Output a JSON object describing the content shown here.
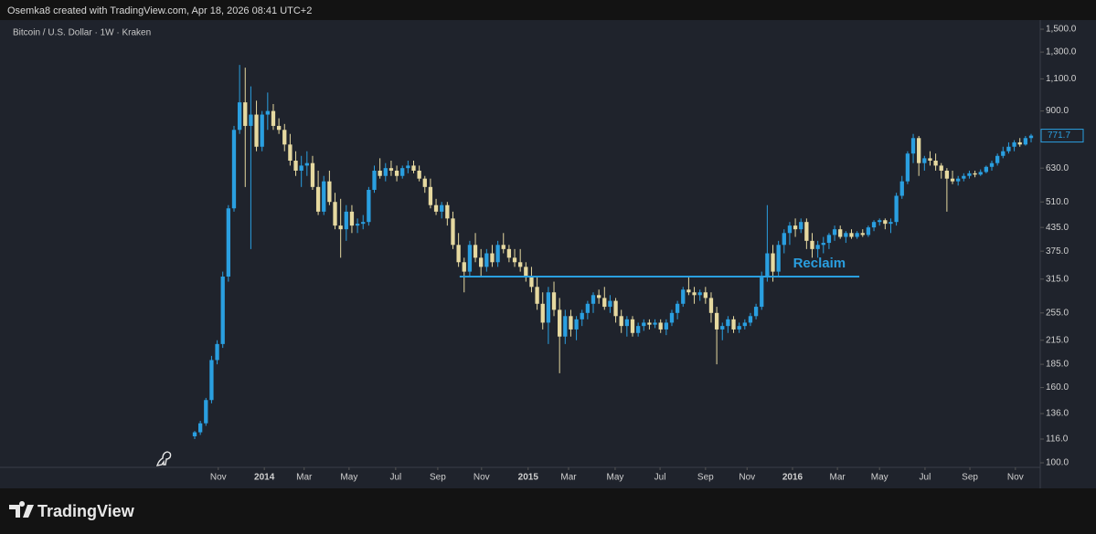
{
  "header": {
    "credit": "Osemka8 created with TradingView.com, Apr 18, 2026 08:41 UTC+2"
  },
  "brand": "TradingView",
  "chart_data": {
    "type": "candlestick",
    "title": "Bitcoin / U.S. Dollar · 1W · Kraken",
    "log_scale": true,
    "up_color": "#2a9fe0",
    "down_color": "#e6d9a0",
    "ylim": [
      97.2,
      1588
    ],
    "yticks": [
      {
        "value": 100,
        "label": "100.0"
      },
      {
        "value": 116,
        "label": "116.0"
      },
      {
        "value": 136,
        "label": "136.0"
      },
      {
        "value": 160,
        "label": "160.0"
      },
      {
        "value": 185,
        "label": "185.0"
      },
      {
        "value": 215,
        "label": "215.0"
      },
      {
        "value": 255,
        "label": "255.0"
      },
      {
        "value": 315,
        "label": "315.0"
      },
      {
        "value": 375,
        "label": "375.0"
      },
      {
        "value": 435,
        "label": "435.0"
      },
      {
        "value": 510,
        "label": "510.0"
      },
      {
        "value": 630,
        "label": "630.0"
      },
      {
        "value": 900,
        "label": "900.0"
      },
      {
        "value": 1100,
        "label": "1,100.0"
      },
      {
        "value": 1300,
        "label": "1,300.0"
      },
      {
        "value": 1500,
        "label": "1,500.0"
      }
    ],
    "xlim": [
      -0.5,
      149.5
    ],
    "xticks": [
      {
        "value": 4.2,
        "label": "Nov"
      },
      {
        "value": 12.4,
        "label": "2014"
      },
      {
        "value": 19.5,
        "label": "Mar"
      },
      {
        "value": 27.5,
        "label": "May"
      },
      {
        "value": 35.8,
        "label": "Jul"
      },
      {
        "value": 43.3,
        "label": "Sep"
      },
      {
        "value": 51.1,
        "label": "Nov"
      },
      {
        "value": 59.4,
        "label": "2015"
      },
      {
        "value": 66.6,
        "label": "Mar"
      },
      {
        "value": 74.9,
        "label": "May"
      },
      {
        "value": 82.9,
        "label": "Jul"
      },
      {
        "value": 91,
        "label": "Sep"
      },
      {
        "value": 98.4,
        "label": "Nov"
      },
      {
        "value": 106.5,
        "label": "2016"
      },
      {
        "value": 114.5,
        "label": "Mar"
      },
      {
        "value": 122,
        "label": "May"
      },
      {
        "value": 130.1,
        "label": "Jul"
      },
      {
        "value": 138.1,
        "label": "Sep"
      },
      {
        "value": 146.2,
        "label": "Nov"
      }
    ],
    "price_tag": 771.7,
    "level": {
      "value": 320,
      "start": 47.2,
      "end": 118.4,
      "color": "#2a9fe0",
      "label": "Reclaim"
    },
    "candles": [
      [
        118,
        122,
        116,
        121
      ],
      [
        121,
        130,
        119,
        128
      ],
      [
        128,
        150,
        126,
        148
      ],
      [
        148,
        195,
        145,
        190
      ],
      [
        190,
        215,
        185,
        210
      ],
      [
        210,
        330,
        205,
        320
      ],
      [
        320,
        500,
        310,
        490
      ],
      [
        490,
        820,
        480,
        800
      ],
      [
        800,
        1200,
        780,
        950
      ],
      [
        950,
        1180,
        560,
        820
      ],
      [
        820,
        1050,
        380,
        880
      ],
      [
        880,
        960,
        700,
        720
      ],
      [
        720,
        900,
        700,
        880
      ],
      [
        880,
        1010,
        800,
        900
      ],
      [
        900,
        940,
        800,
        820
      ],
      [
        820,
        860,
        780,
        800
      ],
      [
        800,
        830,
        700,
        730
      ],
      [
        730,
        780,
        640,
        660
      ],
      [
        660,
        700,
        600,
        620
      ],
      [
        620,
        680,
        560,
        640
      ],
      [
        640,
        700,
        600,
        650
      ],
      [
        650,
        680,
        550,
        560
      ],
      [
        560,
        620,
        470,
        480
      ],
      [
        480,
        600,
        470,
        580
      ],
      [
        580,
        620,
        500,
        510
      ],
      [
        510,
        540,
        430,
        440
      ],
      [
        440,
        520,
        360,
        430
      ],
      [
        430,
        500,
        400,
        480
      ],
      [
        480,
        500,
        420,
        440
      ],
      [
        440,
        460,
        420,
        445
      ],
      [
        445,
        470,
        430,
        450
      ],
      [
        450,
        560,
        440,
        550
      ],
      [
        550,
        640,
        540,
        620
      ],
      [
        620,
        670,
        590,
        600
      ],
      [
        600,
        650,
        580,
        630
      ],
      [
        630,
        660,
        600,
        620
      ],
      [
        620,
        640,
        580,
        600
      ],
      [
        600,
        640,
        590,
        630
      ],
      [
        630,
        660,
        610,
        640
      ],
      [
        640,
        660,
        610,
        620
      ],
      [
        620,
        640,
        580,
        590
      ],
      [
        590,
        600,
        540,
        560
      ],
      [
        560,
        590,
        490,
        500
      ],
      [
        500,
        520,
        470,
        480
      ],
      [
        480,
        510,
        460,
        500
      ],
      [
        500,
        510,
        440,
        460
      ],
      [
        460,
        480,
        380,
        390
      ],
      [
        390,
        420,
        340,
        350
      ],
      [
        350,
        360,
        290,
        330
      ],
      [
        330,
        400,
        320,
        390
      ],
      [
        390,
        420,
        350,
        360
      ],
      [
        360,
        380,
        320,
        340
      ],
      [
        340,
        380,
        330,
        370
      ],
      [
        370,
        390,
        340,
        350
      ],
      [
        350,
        400,
        340,
        390
      ],
      [
        390,
        420,
        370,
        380
      ],
      [
        380,
        390,
        350,
        360
      ],
      [
        360,
        380,
        340,
        350
      ],
      [
        350,
        380,
        330,
        340
      ],
      [
        340,
        350,
        310,
        320
      ],
      [
        320,
        340,
        290,
        300
      ],
      [
        300,
        320,
        260,
        270
      ],
      [
        270,
        290,
        230,
        240
      ],
      [
        240,
        300,
        210,
        290
      ],
      [
        290,
        310,
        250,
        260
      ],
      [
        260,
        280,
        175,
        220
      ],
      [
        220,
        260,
        210,
        250
      ],
      [
        250,
        260,
        220,
        230
      ],
      [
        230,
        250,
        215,
        245
      ],
      [
        245,
        260,
        235,
        255
      ],
      [
        255,
        275,
        245,
        270
      ],
      [
        270,
        290,
        255,
        285
      ],
      [
        285,
        295,
        270,
        280
      ],
      [
        280,
        300,
        260,
        265
      ],
      [
        265,
        285,
        255,
        275
      ],
      [
        275,
        280,
        240,
        250
      ],
      [
        250,
        260,
        225,
        235
      ],
      [
        235,
        250,
        220,
        245
      ],
      [
        245,
        250,
        220,
        225
      ],
      [
        225,
        240,
        220,
        235
      ],
      [
        235,
        245,
        228,
        240
      ],
      [
        240,
        245,
        230,
        237
      ],
      [
        237,
        245,
        232,
        240
      ],
      [
        240,
        245,
        225,
        230
      ],
      [
        230,
        245,
        222,
        240
      ],
      [
        240,
        260,
        235,
        255
      ],
      [
        255,
        275,
        245,
        270
      ],
      [
        270,
        300,
        265,
        295
      ],
      [
        295,
        320,
        285,
        290
      ],
      [
        290,
        300,
        270,
        285
      ],
      [
        285,
        295,
        275,
        290
      ],
      [
        290,
        300,
        270,
        280
      ],
      [
        280,
        290,
        240,
        255
      ],
      [
        255,
        265,
        185,
        230
      ],
      [
        230,
        240,
        215,
        235
      ],
      [
        235,
        250,
        225,
        245
      ],
      [
        245,
        250,
        225,
        230
      ],
      [
        230,
        240,
        225,
        235
      ],
      [
        235,
        245,
        230,
        240
      ],
      [
        240,
        255,
        235,
        250
      ],
      [
        250,
        270,
        245,
        265
      ],
      [
        265,
        330,
        260,
        320
      ],
      [
        320,
        500,
        310,
        370
      ],
      [
        370,
        390,
        310,
        330
      ],
      [
        330,
        400,
        320,
        390
      ],
      [
        390,
        430,
        370,
        420
      ],
      [
        420,
        450,
        390,
        440
      ],
      [
        440,
        460,
        410,
        430
      ],
      [
        430,
        460,
        420,
        450
      ],
      [
        450,
        460,
        380,
        400
      ],
      [
        400,
        420,
        360,
        380
      ],
      [
        380,
        400,
        360,
        390
      ],
      [
        390,
        410,
        370,
        395
      ],
      [
        395,
        420,
        380,
        415
      ],
      [
        415,
        440,
        400,
        430
      ],
      [
        430,
        440,
        405,
        410
      ],
      [
        410,
        425,
        395,
        420
      ],
      [
        420,
        430,
        405,
        410
      ],
      [
        410,
        425,
        405,
        420
      ],
      [
        420,
        430,
        410,
        415
      ],
      [
        415,
        440,
        410,
        435
      ],
      [
        435,
        455,
        425,
        450
      ],
      [
        450,
        460,
        440,
        455
      ],
      [
        455,
        460,
        430,
        445
      ],
      [
        445,
        460,
        420,
        450
      ],
      [
        450,
        540,
        440,
        530
      ],
      [
        530,
        600,
        520,
        580
      ],
      [
        580,
        700,
        570,
        690
      ],
      [
        690,
        780,
        650,
        760
      ],
      [
        760,
        770,
        600,
        650
      ],
      [
        650,
        680,
        620,
        670
      ],
      [
        670,
        700,
        640,
        660
      ],
      [
        660,
        690,
        620,
        640
      ],
      [
        640,
        650,
        590,
        620
      ],
      [
        620,
        630,
        480,
        590
      ],
      [
        590,
        620,
        570,
        580
      ],
      [
        580,
        600,
        565,
        590
      ],
      [
        590,
        610,
        580,
        600
      ],
      [
        600,
        620,
        590,
        610
      ],
      [
        610,
        620,
        595,
        605
      ],
      [
        605,
        625,
        600,
        615
      ],
      [
        615,
        640,
        610,
        635
      ],
      [
        635,
        660,
        620,
        650
      ],
      [
        650,
        690,
        640,
        680
      ],
      [
        680,
        720,
        670,
        700
      ],
      [
        700,
        740,
        690,
        720
      ],
      [
        720,
        750,
        700,
        740
      ],
      [
        740,
        760,
        720,
        730
      ],
      [
        730,
        770,
        725,
        760
      ],
      [
        760,
        780,
        740,
        771.7
      ]
    ]
  }
}
